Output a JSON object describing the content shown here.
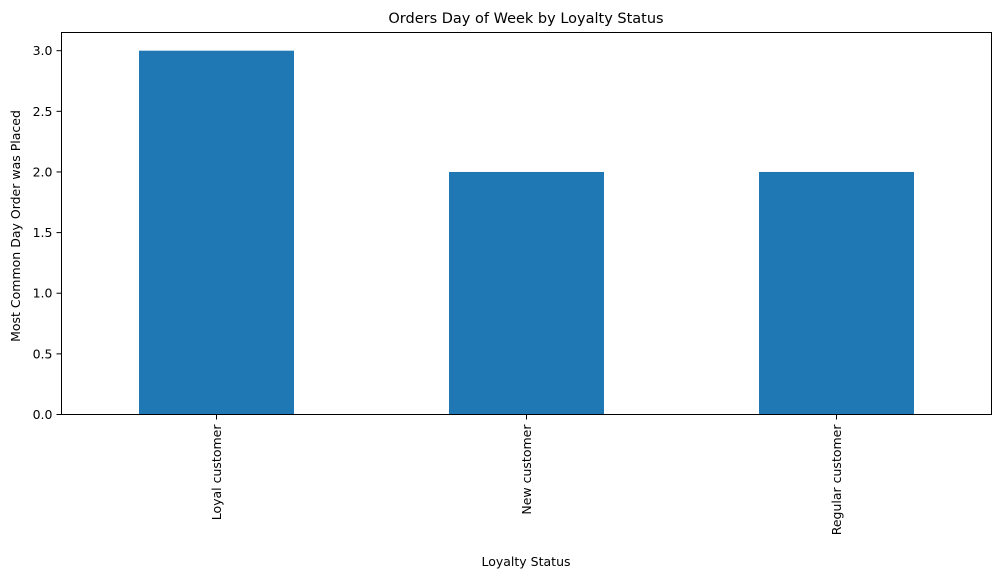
{
  "chart_data": {
    "type": "bar",
    "title": "Orders Day of Week by Loyalty Status",
    "xlabel": "Loyalty Status",
    "ylabel": "Most Common Day Order was Placed",
    "categories": [
      "Loyal customer",
      "New customer",
      "Regular customer"
    ],
    "values": [
      3,
      2,
      2
    ],
    "ylim": [
      0,
      3.15
    ],
    "yticks": [
      0.0,
      0.5,
      1.0,
      1.5,
      2.0,
      2.5,
      3.0
    ],
    "ytick_labels": [
      "0.0",
      "0.5",
      "1.0",
      "1.5",
      "2.0",
      "2.5",
      "3.0"
    ],
    "grid": false,
    "legend": "none",
    "bar_color": "#1f77b4"
  }
}
